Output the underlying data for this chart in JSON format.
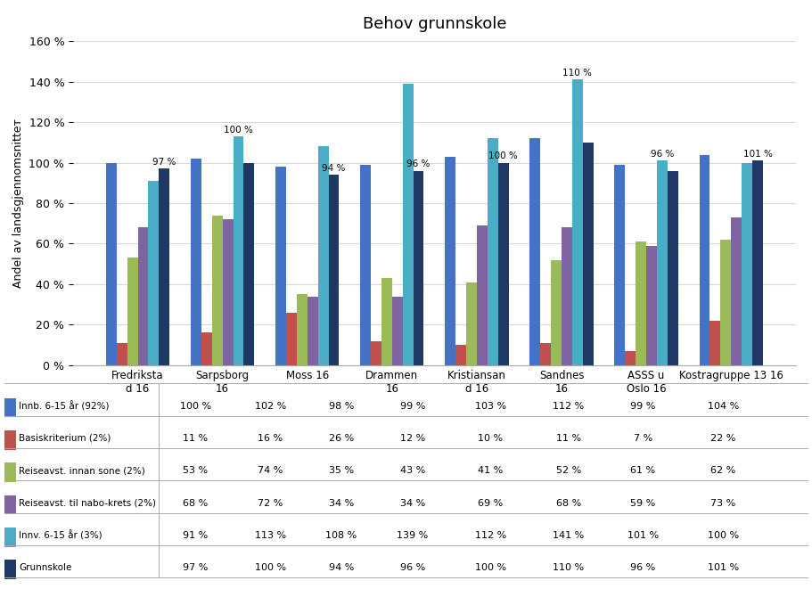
{
  "title": "Behov grunnskole",
  "ylabel": "Andel av landsgjennomsnittет",
  "categories": [
    "Fredriksta\nd 16",
    "Sarpsborg\n16",
    "Moss 16",
    "Drammen\n16",
    "Kristiansan\nd 16",
    "Sandnes\n16",
    "ASSS u\nOslo 16",
    "Kostragruppe 13 16"
  ],
  "series": [
    {
      "label": "Innb. 6-15 år (92%)",
      "color": "#4472C4",
      "values": [
        100,
        102,
        98,
        99,
        103,
        112,
        99,
        104
      ]
    },
    {
      "label": "Basiskriterium (2%)",
      "color": "#C0504D",
      "values": [
        11,
        16,
        26,
        12,
        10,
        11,
        7,
        22
      ]
    },
    {
      "label": "Reiseavst. innan sone (2%)",
      "color": "#9BBB59",
      "values": [
        53,
        74,
        35,
        43,
        41,
        52,
        61,
        62
      ]
    },
    {
      "label": "Reiseavst. til nabo-krets (2%)",
      "color": "#8064A2",
      "values": [
        68,
        72,
        34,
        34,
        69,
        68,
        59,
        73
      ]
    },
    {
      "label": "Innv. 6-15 år (3%)",
      "color": "#4BACC6",
      "values": [
        91,
        113,
        108,
        139,
        112,
        141,
        101,
        100
      ]
    },
    {
      "label": "Grunnskole",
      "color": "#1F3864",
      "values": [
        97,
        100,
        94,
        96,
        100,
        110,
        96,
        101
      ]
    }
  ],
  "bar_labels": {
    "Innv. 6-15 år (3%)": [
      null,
      "100 %",
      null,
      null,
      null,
      "110 %",
      "96 %",
      null
    ],
    "Grunnskole": [
      "97 %",
      null,
      "94 %",
      "96 %",
      "100 %",
      null,
      null,
      "101 %"
    ]
  },
  "ylim": [
    0,
    160
  ],
  "yticks": [
    0,
    20,
    40,
    60,
    80,
    100,
    120,
    140,
    160
  ],
  "legend_table": {
    "headers": [
      "",
      "Fredrikstad 16",
      "Sarpsborg 16",
      "Moss 16",
      "Drammen 16",
      "Kristiansand 16",
      "Sandnes 16",
      "ASSS u Oslo 16",
      "Kostragruppe 13 16"
    ],
    "rows": [
      [
        "Innb. 6-15 år (92%)",
        "100 %",
        "102 %",
        "98 %",
        "99 %",
        "103 %",
        "112 %",
        "99 %",
        "104 %"
      ],
      [
        "Basiskriterium (2%)",
        "11 %",
        "16 %",
        "26 %",
        "12 %",
        "10 %",
        "11 %",
        "7 %",
        "22 %"
      ],
      [
        "Reiseavst. innan sone (2%)",
        "53 %",
        "74 %",
        "35 %",
        "43 %",
        "41 %",
        "52 %",
        "61 %",
        "62 %"
      ],
      [
        "Reiseavst. til nabo-krets (2%)",
        "68 %",
        "72 %",
        "34 %",
        "34 %",
        "69 %",
        "68 %",
        "59 %",
        "73 %"
      ],
      [
        "Innv. 6-15 år (3%)",
        "91 %",
        "113 %",
        "108 %",
        "139 %",
        "112 %",
        "141 %",
        "101 %",
        "100 %"
      ],
      [
        "Grunnskole",
        "97 %",
        "100 %",
        "94 %",
        "96 %",
        "100 %",
        "110 %",
        "96 %",
        "101 %"
      ]
    ]
  },
  "series_colors": [
    "#4472C4",
    "#C0504D",
    "#9BBB59",
    "#8064A2",
    "#4BACC6",
    "#1F3864"
  ],
  "background_color": "#FFFFFF",
  "grid_color": "#D9D9D9"
}
